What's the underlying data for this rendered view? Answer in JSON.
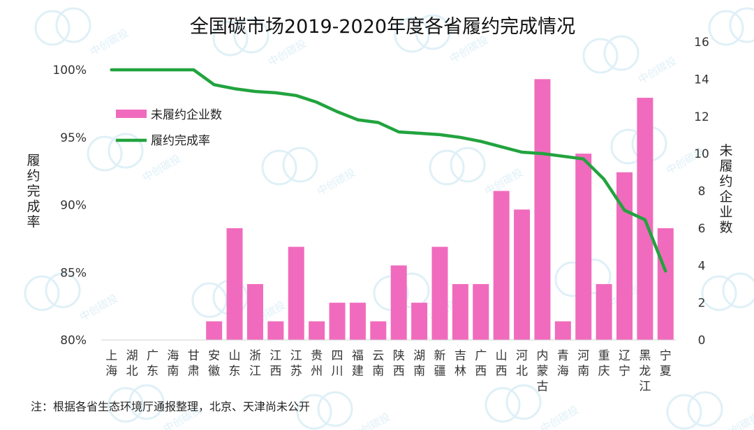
{
  "chart_data": {
    "type": "bar+line",
    "title": "全国碳市场2019-2020年度各省履约完成情况",
    "categories": [
      "上海",
      "湖北",
      "广东",
      "海南",
      "甘肃",
      "安徽",
      "山东",
      "浙江",
      "江西",
      "江苏",
      "贵州",
      "四川",
      "福建",
      "云南",
      "陕西",
      "湖南",
      "新疆",
      "吉林",
      "广西",
      "山西",
      "河北",
      "内蒙古",
      "青海",
      "河南",
      "重庆",
      "辽宁",
      "黑龙江",
      "宁夏"
    ],
    "series": [
      {
        "name": "未履约企业数",
        "type": "bar",
        "axis": "right",
        "color": "#f06bbd",
        "values": [
          0,
          0,
          0,
          0,
          0,
          1,
          6,
          3,
          1,
          5,
          1,
          2,
          2,
          1,
          4,
          2,
          5,
          3,
          3,
          8,
          7,
          14,
          1,
          10,
          3,
          9,
          13,
          6
        ]
      },
      {
        "name": "履约完成率",
        "type": "line",
        "axis": "left",
        "color": "#22a33e",
        "values": [
          100,
          100,
          100,
          100,
          100,
          98.9,
          98.6,
          98.4,
          98.3,
          98.1,
          97.6,
          96.9,
          96.3,
          96.1,
          95.4,
          95.3,
          95.2,
          95.0,
          94.7,
          94.3,
          93.9,
          93.8,
          93.6,
          93.4,
          91.9,
          89.6,
          88.9,
          85.1
        ]
      }
    ],
    "y_left": {
      "label": "履约完成率",
      "range": [
        80,
        100
      ],
      "ticks": [
        "80%",
        "85%",
        "90%",
        "95%",
        "100%"
      ]
    },
    "y_right": {
      "label": "未履约企业数",
      "range": [
        0,
        16
      ],
      "ticks": [
        "0",
        "2",
        "4",
        "6",
        "8",
        "10",
        "12",
        "14",
        "16"
      ]
    },
    "legend_position": "upper-left",
    "grid": false,
    "note": "注：根据各省生态环境厅通报整理，北京、天津尚未公开"
  },
  "watermark": {
    "text": "中创碳投",
    "color": "#c6e4f1"
  }
}
